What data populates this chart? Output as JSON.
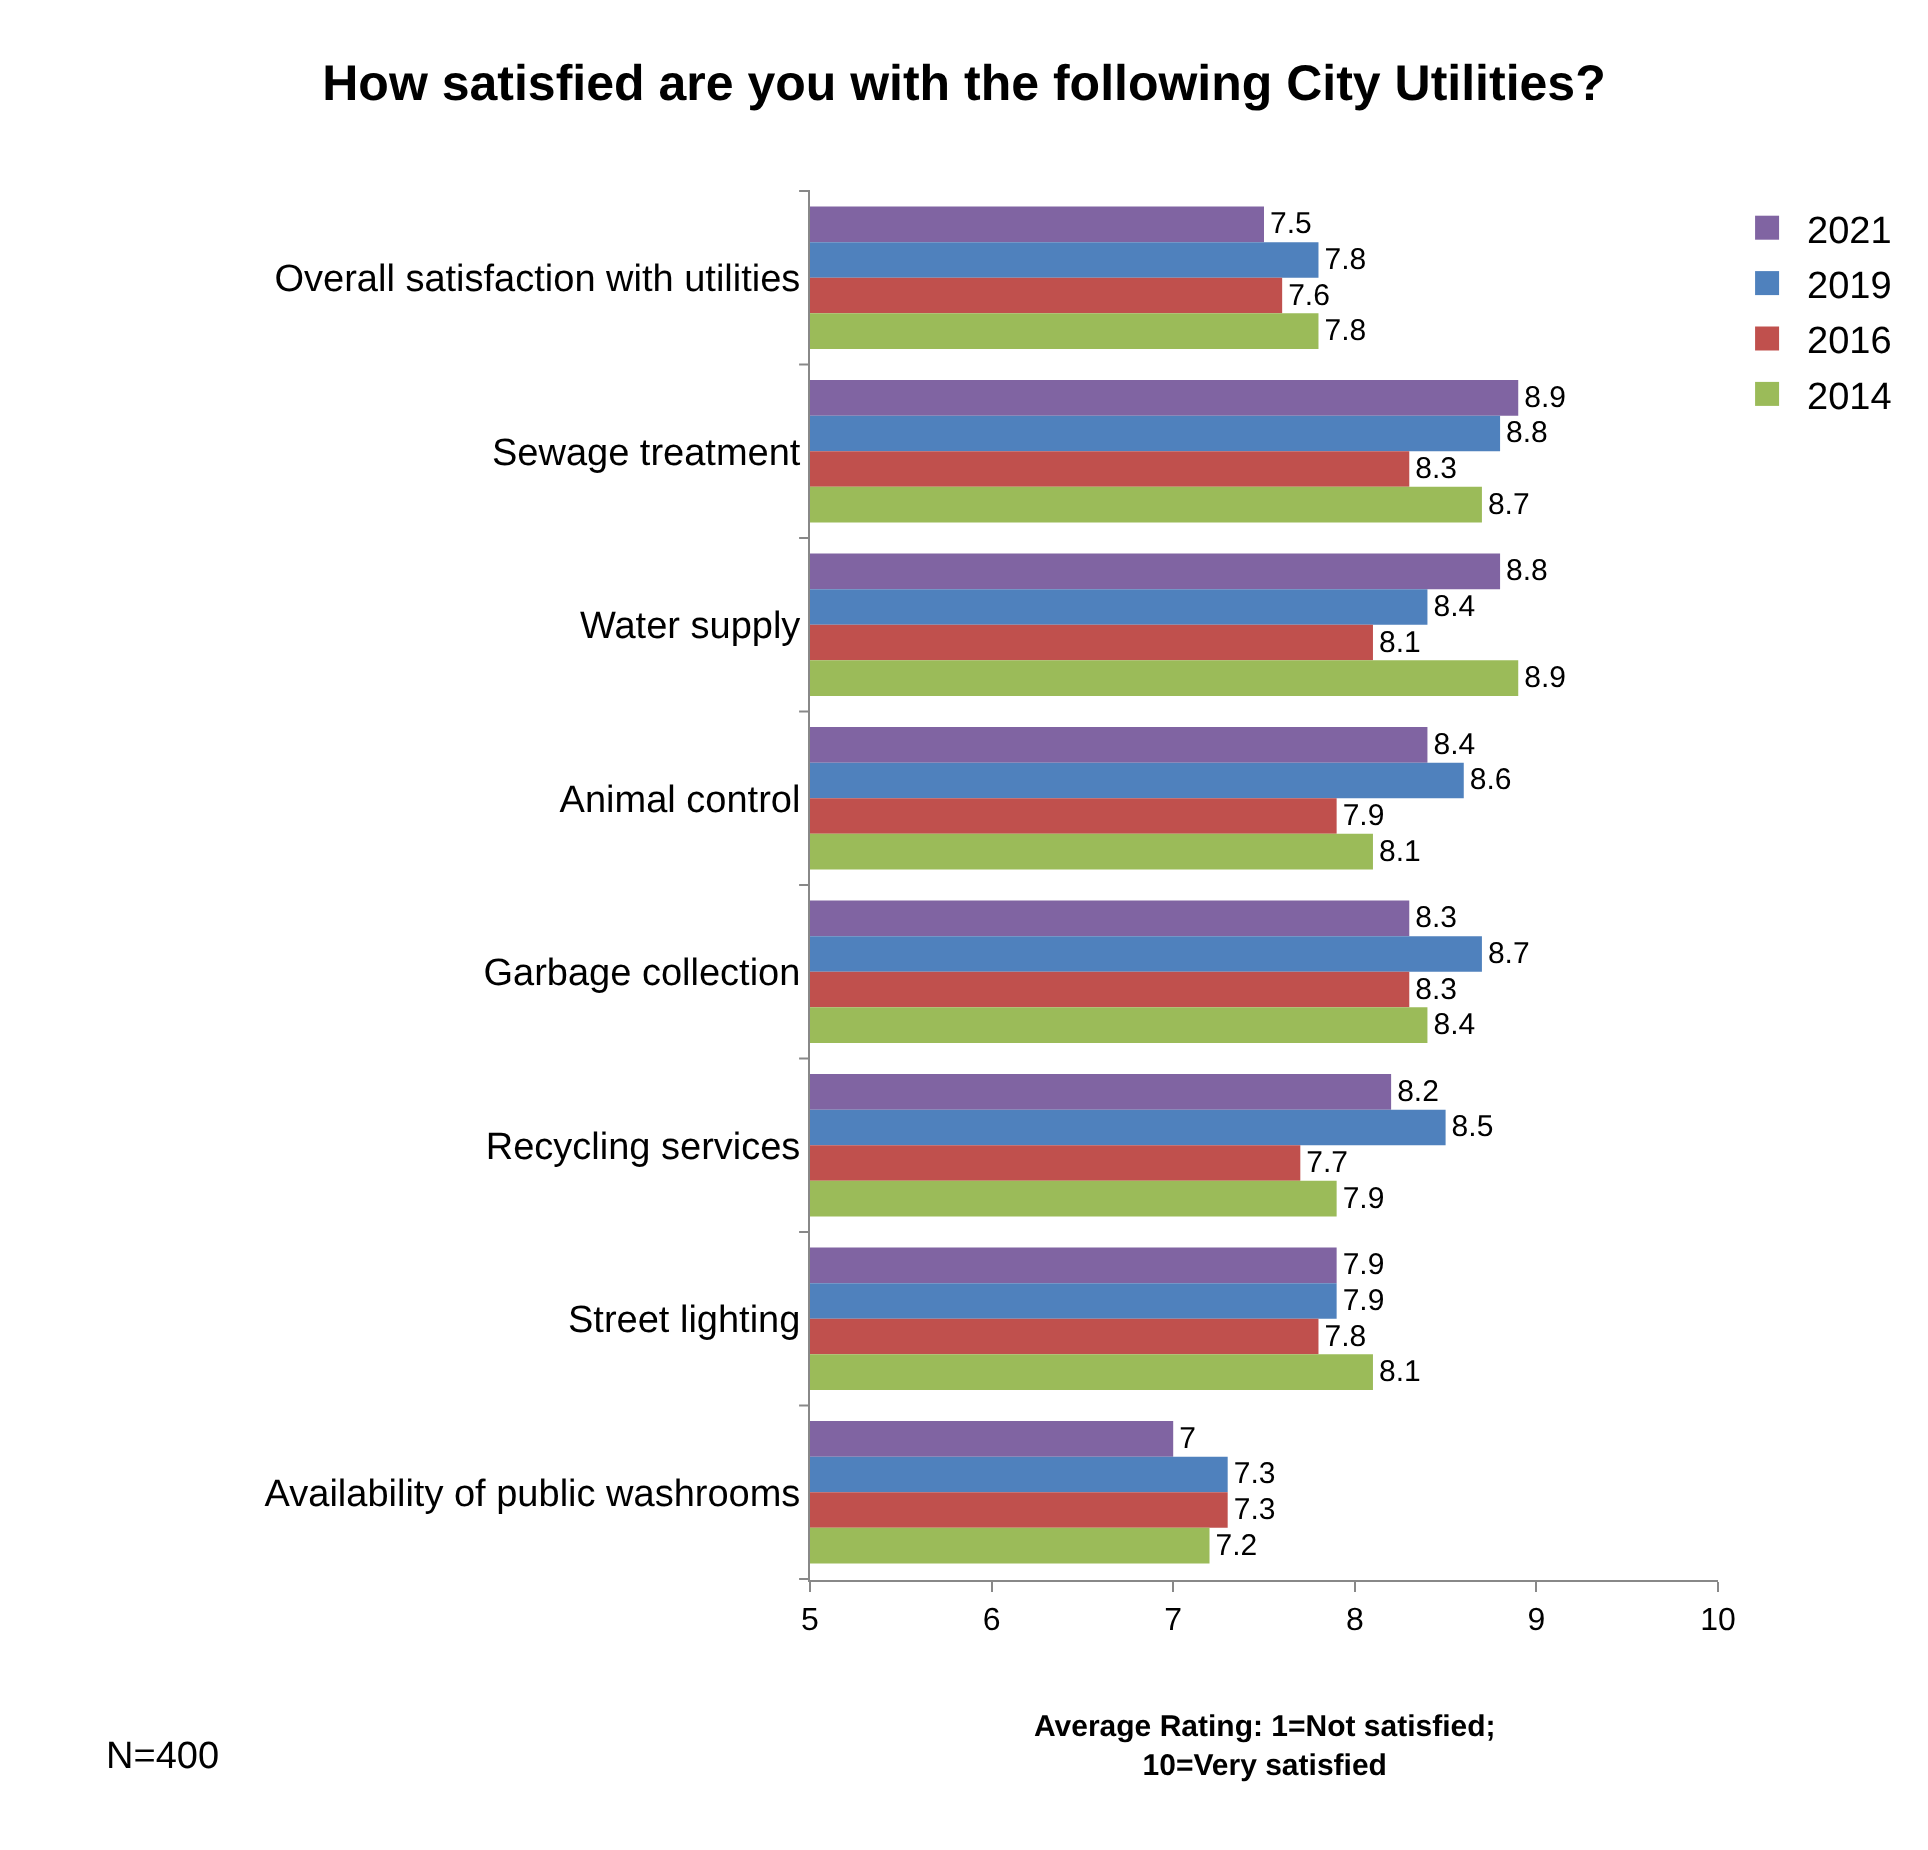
{
  "chart_data": {
    "type": "bar",
    "orientation": "horizontal",
    "title": "How satisfied are you with the following City Utilities?",
    "xlabel": "Average Rating: 1=Not satisfied;\n10=Very satisfied",
    "categories": [
      "Overall satisfaction with utilities",
      "Sewage treatment",
      "Water supply",
      "Animal control",
      "Garbage collection",
      "Recycling services",
      "Street lighting",
      "Availability of public washrooms"
    ],
    "series": [
      {
        "name": "2021",
        "color": "#8064a2",
        "values": [
          7.5,
          8.9,
          8.8,
          8.4,
          8.3,
          8.2,
          7.9,
          7
        ]
      },
      {
        "name": "2019",
        "color": "#4f81bd",
        "values": [
          7.8,
          8.8,
          8.4,
          8.6,
          8.7,
          8.5,
          7.9,
          7.3
        ]
      },
      {
        "name": "2016",
        "color": "#c0504d",
        "values": [
          7.6,
          8.3,
          8.1,
          7.9,
          8.3,
          7.7,
          7.8,
          7.3
        ]
      },
      {
        "name": "2014",
        "color": "#9bbb59",
        "values": [
          7.8,
          8.7,
          8.9,
          8.1,
          8.4,
          7.9,
          8.1,
          7.2
        ]
      }
    ],
    "xlim": [
      5,
      10
    ],
    "xticks": [
      5,
      6,
      7,
      8,
      9,
      10
    ],
    "legend": "top right",
    "data_labels": true,
    "annotations": [
      "N=400"
    ]
  }
}
